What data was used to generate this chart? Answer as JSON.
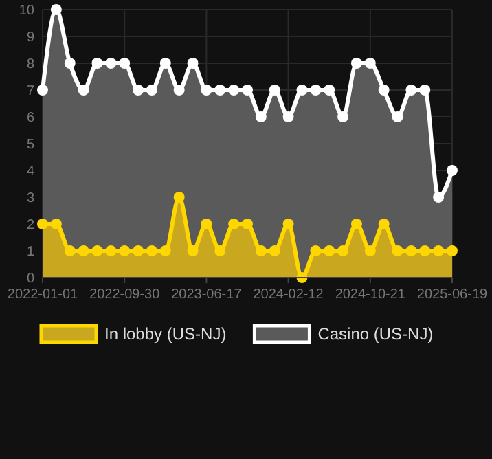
{
  "chart_data": {
    "type": "area",
    "categories": [
      "2022-01-01",
      null,
      null,
      null,
      null,
      null,
      "2022-09-30",
      null,
      null,
      null,
      null,
      null,
      "2023-06-17",
      null,
      null,
      null,
      null,
      null,
      "2024-02-12",
      null,
      null,
      null,
      null,
      null,
      "2024-10-21",
      null,
      null,
      null,
      null,
      null,
      "2025-06-19"
    ],
    "series": [
      {
        "name": "Casino (US-NJ)",
        "color": "#ffffff",
        "values": [
          7,
          10,
          8,
          7,
          8,
          8,
          8,
          7,
          7,
          8,
          7,
          8,
          7,
          7,
          7,
          7,
          6,
          7,
          6,
          7,
          7,
          7,
          6,
          8,
          8,
          7,
          6,
          7,
          7,
          3,
          4
        ]
      },
      {
        "name": "In lobby (US-NJ)",
        "color": "#ffd700",
        "values": [
          2,
          2,
          1,
          1,
          1,
          1,
          1,
          1,
          1,
          1,
          3,
          1,
          2,
          1,
          2,
          2,
          1,
          1,
          2,
          0,
          1,
          1,
          1,
          2,
          1,
          2,
          1,
          1,
          1,
          1,
          1
        ]
      }
    ],
    "ylim": [
      0,
      10
    ],
    "yticks": [
      0,
      1,
      2,
      3,
      4,
      5,
      6,
      7,
      8,
      9,
      10
    ],
    "grid": true,
    "legend": "bottom",
    "marker": "circle",
    "line_style": "solid"
  }
}
